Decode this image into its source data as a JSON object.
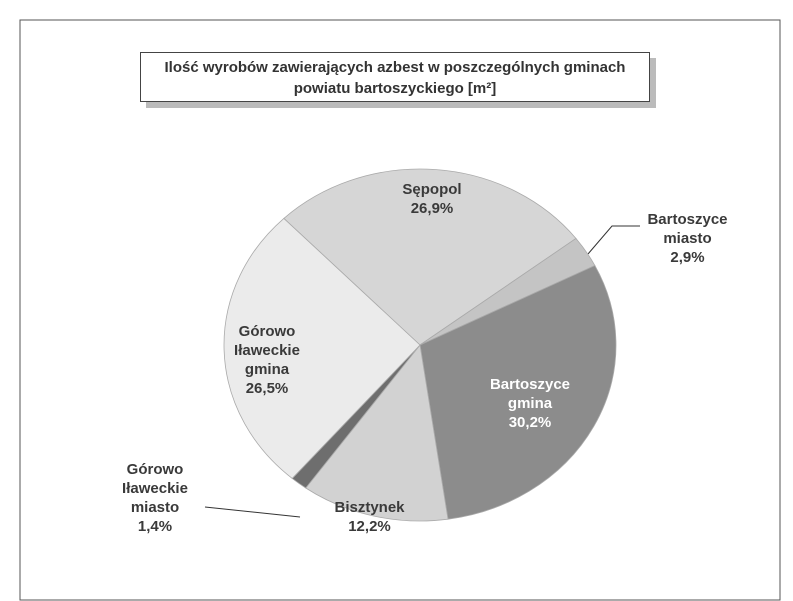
{
  "chart_data": {
    "type": "pie",
    "title": "Ilość wyrobów zawierających azbest w poszczególnych gminach powiatu bartoszyckiego [m²]",
    "categories": [
      "Sępopol",
      "Bartoszyce miasto",
      "Bartoszyce gmina",
      "Bisztynek",
      "Górowo Iławeckie miasto",
      "Górowo Iławeckie gmina"
    ],
    "values": [
      26.9,
      2.9,
      30.2,
      12.2,
      1.4,
      26.5
    ],
    "value_labels": [
      "26,9%",
      "2,9%",
      "30,2%",
      "12,2%",
      "1,4%",
      "26,5%"
    ],
    "colors": [
      "#d6d6d6",
      "#c4c4c4",
      "#8c8c8c",
      "#d2d2d2",
      "#6e6e6e",
      "#ebebeb"
    ]
  }
}
